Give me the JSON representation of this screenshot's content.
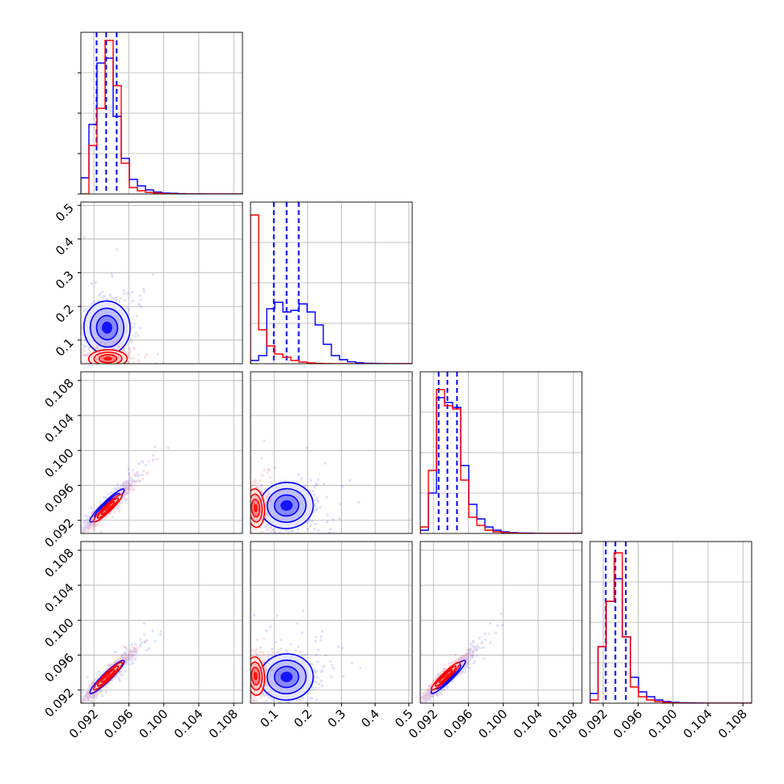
{
  "chart_data": {
    "type": "corner",
    "title": "",
    "grid": true,
    "legend": "none",
    "colors": {
      "series_a": "#0000ff",
      "series_b": "#ff0000",
      "grid": "#b0b0b0",
      "frame": "#000000"
    },
    "parameters": [
      {
        "range": [
          0.0905,
          0.109
        ],
        "ticks": [
          0.092,
          0.096,
          0.1,
          0.104,
          0.108
        ],
        "tick_labels": [
          "0.092",
          "0.096",
          "0.100",
          "0.104",
          "0.108"
        ]
      },
      {
        "range": [
          0.03,
          0.51
        ],
        "ticks": [
          0.1,
          0.2,
          0.3,
          0.4,
          0.5
        ],
        "tick_labels": [
          "0.1",
          "0.2",
          "0.3",
          "0.4",
          "0.5"
        ]
      },
      {
        "range": [
          0.0905,
          0.109
        ],
        "ticks": [
          0.092,
          0.096,
          0.1,
          0.104,
          0.108
        ],
        "tick_labels": [
          "0.092",
          "0.096",
          "0.100",
          "0.104",
          "0.108"
        ]
      },
      {
        "range": [
          0.0905,
          0.109
        ],
        "ticks": [
          0.092,
          0.096,
          0.1,
          0.104,
          0.108
        ],
        "tick_labels": [
          "0.092",
          "0.096",
          "0.100",
          "0.104",
          "0.108"
        ]
      }
    ],
    "series": [
      {
        "color": "#0000ff",
        "mean": [
          0.0935,
          0.137,
          0.0937,
          0.0935
        ],
        "std": [
          0.0012,
          0.036,
          0.0012,
          0.0012
        ],
        "corr": [
          [
            1,
            0.1,
            0.96,
            0.96
          ],
          [
            0.1,
            1,
            0.1,
            0.1
          ],
          [
            0.96,
            0.1,
            1,
            0.96
          ],
          [
            0.96,
            0.1,
            0.96,
            1
          ]
        ],
        "quantiles": [
          [
            0.0923,
            0.0934,
            0.0946
          ],
          [
            0.099,
            0.137,
            0.173
          ],
          [
            0.0926,
            0.0936,
            0.0947
          ],
          [
            0.0923,
            0.0934,
            0.0946
          ]
        ],
        "histograms": [
          [
            0.1,
            0.43,
            0.81,
            0.84,
            0.48,
            0.22,
            0.09,
            0.05,
            0.025,
            0.012,
            0.006,
            0.004,
            0.002,
            0.001,
            0.001,
            0,
            0,
            0,
            0,
            0
          ],
          [
            0.02,
            0.05,
            0.34,
            0.38,
            0.32,
            0.33,
            0.37,
            0.32,
            0.24,
            0.12,
            0.05,
            0.025,
            0.012,
            0.006,
            0.003,
            0.002,
            0.001,
            0,
            0,
            0
          ],
          [
            0.02,
            0.25,
            0.84,
            0.81,
            0.78,
            0.42,
            0.18,
            0.09,
            0.04,
            0.02,
            0.01,
            0.005,
            0.003,
            0.002,
            0.001,
            0,
            0,
            0,
            0,
            0
          ],
          [
            0.06,
            0.35,
            0.63,
            0.77,
            0.41,
            0.16,
            0.07,
            0.04,
            0.02,
            0.01,
            0.005,
            0.003,
            0.002,
            0.001,
            0,
            0,
            0,
            0,
            0,
            0
          ]
        ]
      },
      {
        "color": "#ff0000",
        "mean": [
          0.0936,
          0.045,
          0.0934,
          0.0936
        ],
        "std": [
          0.001,
          0.012,
          0.001,
          0.001
        ],
        "corr": [
          [
            1,
            0.05,
            0.96,
            0.96
          ],
          [
            0.05,
            1,
            0.05,
            0.05
          ],
          [
            0.96,
            0.05,
            1,
            0.96
          ],
          [
            0.96,
            0.05,
            0.96,
            1
          ]
        ],
        "quantiles": [],
        "histograms": [
          [
            0,
            0.3,
            0.53,
            0.95,
            0.67,
            0.19,
            0.04,
            0.02,
            0.01,
            0.005,
            0.002,
            0.001,
            0,
            0,
            0,
            0,
            0,
            0,
            0,
            0
          ],
          [
            0.92,
            0.21,
            0.11,
            0.06,
            0.04,
            0.02,
            0.01,
            0.005,
            0.002,
            0.001,
            0,
            0,
            0,
            0,
            0,
            0,
            0,
            0,
            0,
            0
          ],
          [
            0.04,
            0.39,
            0.89,
            0.79,
            0.77,
            0.33,
            0.1,
            0.05,
            0.02,
            0.01,
            0.005,
            0.002,
            0.001,
            0,
            0,
            0,
            0,
            0,
            0,
            0
          ],
          [
            0.02,
            0.35,
            0.63,
            0.93,
            0.41,
            0.1,
            0.04,
            0.02,
            0.01,
            0.005,
            0.002,
            0.001,
            0,
            0,
            0,
            0,
            0,
            0,
            0,
            0
          ]
        ]
      }
    ]
  }
}
